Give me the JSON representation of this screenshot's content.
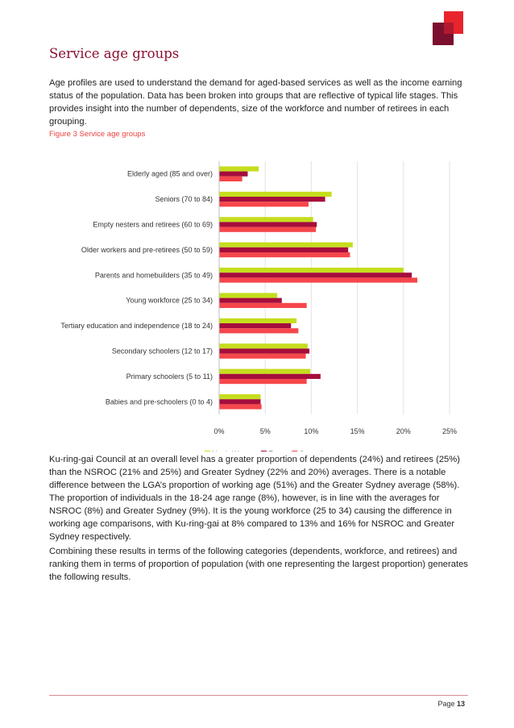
{
  "heading": "Service age groups",
  "intro": "Age profiles are used to understand the demand for aged-based services as well as the income earning status of the population. Data has been broken into groups that are reflective of typical life stages. This provides insight into the number of dependents, size of the workforce and number of retirees in each grouping.",
  "figure_caption": "Figure 3  Service age groups",
  "chart_data": {
    "type": "bar",
    "orientation": "horizontal",
    "categories": [
      "Elderly aged (85 and over)",
      "Seniors (70 to 84)",
      "Empty nesters and retirees (60 to 69)",
      "Older workers and pre-retirees (50 to 59)",
      "Parents and homebuilders (35 to 49)",
      "Young workforce (25 to 34)",
      "Tertiary education and independence (18 to 24)",
      "Secondary schoolers (12 to 17)",
      "Primary schoolers (5 to 11)",
      "Babies and pre-schoolers (0 to 4)"
    ],
    "series": [
      {
        "name": "North-West",
        "color": "#c5dd1d",
        "values": [
          4.3,
          12.2,
          10.2,
          14.5,
          20.0,
          6.3,
          8.4,
          9.6,
          9.9,
          4.5
        ]
      },
      {
        "name": "East",
        "color": "#a50d3c",
        "values": [
          3.1,
          11.5,
          10.6,
          14.0,
          20.9,
          6.8,
          7.8,
          9.8,
          11.0,
          4.5
        ]
      },
      {
        "name": "Central",
        "color": "#f5464b",
        "values": [
          2.5,
          9.7,
          10.5,
          14.2,
          21.5,
          9.5,
          8.6,
          9.4,
          9.5,
          4.6
        ]
      }
    ],
    "xlim": [
      0,
      25
    ],
    "xticks": [
      0,
      5,
      10,
      15,
      20,
      25
    ],
    "tick_labels": [
      "0%",
      "5%",
      "10%",
      "15%",
      "20%",
      "25%"
    ],
    "legend_position": "bottom",
    "gridlines": true
  },
  "para2": "Ku-ring-gai Council at an overall level has a greater proportion of dependents (24%) and retirees (25%) than the NSROC (21% and 25%) and Greater Sydney (22% and 20%) averages. There is a notable difference between the LGA’s proportion of working age (51%) and the Greater Sydney average (58%). The proportion of individuals in the 18-24 age range (8%), however, is in line with the averages for NSROC (8%) and Greater Sydney (9%). It is the young workforce (25 to 34) causing the difference in working age comparisons, with Ku-ring-gai at 8% compared to 13% and 16% for NSROC and Greater Sydney respectively.",
  "para3": "Combining these results in terms of the following categories (dependents, workforce, and retirees) and ranking them in terms of proportion of population (with one representing the largest proportion) generates the following results.",
  "footer": {
    "page_label": "Page",
    "page_number": "13"
  },
  "colors": {
    "accent": "#8c1030",
    "caption": "#e8423f",
    "logo_dark": "#7a0f2e",
    "logo_red": "#e8242d"
  }
}
